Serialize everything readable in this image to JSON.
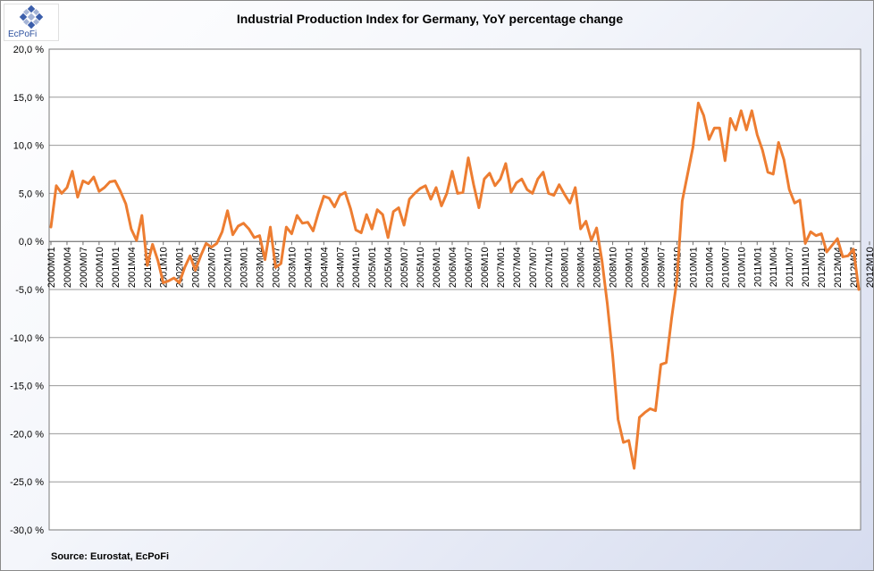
{
  "logo": {
    "text": "EcPoFi",
    "mark": "diamond-logo-icon"
  },
  "source_note": "Source: Eurostat,  EcPoFi",
  "colors": {
    "line": "#ED7D31",
    "grid": "#9a9a9a",
    "plot_bg": "#ffffff",
    "axis_text": "#000000"
  },
  "chart_data": {
    "type": "line",
    "title": "Industrial Production Index for Germany, YoY percentage change",
    "xlabel": "",
    "ylabel": "",
    "ylim": [
      -30,
      20
    ],
    "grid": true,
    "legend": "none",
    "y_ticks": [
      20,
      15,
      10,
      5,
      0,
      -5,
      -10,
      -15,
      -20,
      -25,
      -30
    ],
    "y_tick_labels": [
      "20,0 %",
      "15,0 %",
      "10,0 %",
      "5,0 %",
      "0,0 %",
      "-5,0 %",
      "-10,0 %",
      "-15,0 %",
      "-20,0 %",
      "-25,0 %",
      "-30,0 %"
    ],
    "x_tick_labels": [
      "2000M01",
      "2000M04",
      "2000M07",
      "2000M10",
      "2001M01",
      "2001M04",
      "2001M07",
      "2001M10",
      "2002M01",
      "2002M04",
      "2002M07",
      "2002M10",
      "2003M01",
      "2003M04",
      "2003M07",
      "2003M10",
      "2004M01",
      "2004M04",
      "2004M07",
      "2004M10",
      "2005M01",
      "2005M04",
      "2005M07",
      "2005M10",
      "2006M01",
      "2006M04",
      "2006M07",
      "2006M10",
      "2007M01",
      "2007M04",
      "2007M07",
      "2007M10",
      "2008M01",
      "2008M04",
      "2008M07",
      "2008M10",
      "2009M01",
      "2009M04",
      "2009M07",
      "2009M10",
      "2010M01",
      "2010M04",
      "2010M07",
      "2010M10",
      "2011M01",
      "2011M04",
      "2011M07",
      "2011M10",
      "2012M01",
      "2012M04",
      "2012M07",
      "2012M10"
    ],
    "series": [
      {
        "name": "Industrial Production Index YoY",
        "start": "2000M01",
        "values": [
          1.5,
          5.8,
          5.0,
          5.6,
          7.3,
          4.6,
          6.3,
          6.0,
          6.7,
          5.2,
          5.6,
          6.2,
          6.3,
          5.2,
          3.9,
          1.3,
          0.1,
          2.7,
          -2.5,
          -0.3,
          -2.0,
          -4.3,
          -4.1,
          -3.8,
          -4.3,
          -2.7,
          -1.5,
          -3.0,
          -1.5,
          -0.2,
          -0.6,
          -0.2,
          1.0,
          3.2,
          0.7,
          1.6,
          1.9,
          1.3,
          0.4,
          0.6,
          -1.9,
          1.5,
          -2.7,
          -2.3,
          1.5,
          0.8,
          2.7,
          1.9,
          2.0,
          1.1,
          3.0,
          4.7,
          4.5,
          3.6,
          4.8,
          5.1,
          3.4,
          1.2,
          0.9,
          2.8,
          1.3,
          3.3,
          2.8,
          0.4,
          3.1,
          3.5,
          1.7,
          4.4,
          5.0,
          5.5,
          5.8,
          4.4,
          5.6,
          3.7,
          5.0,
          7.3,
          5.0,
          5.1,
          8.7,
          5.9,
          3.5,
          6.5,
          7.1,
          5.8,
          6.5,
          8.1,
          5.1,
          6.1,
          6.5,
          5.4,
          5.0,
          6.5,
          7.2,
          5.0,
          4.8,
          5.9,
          4.9,
          4.0,
          5.6,
          1.3,
          2.1,
          0.1,
          1.4,
          -2.0,
          -6.5,
          -11.9,
          -18.5,
          -20.9,
          -20.7,
          -23.6,
          -18.3,
          -17.8,
          -17.4,
          -17.6,
          -12.8,
          -12.6,
          -8.0,
          -4.0,
          4.2,
          7.0,
          9.8,
          14.4,
          13.1,
          10.6,
          11.8,
          11.8,
          8.4,
          12.8,
          11.6,
          13.6,
          11.6,
          13.6,
          11.1,
          9.5,
          7.2,
          7.0,
          10.3,
          8.5,
          5.4,
          4.0,
          4.3,
          -0.2,
          1.0,
          0.6,
          0.8,
          -1.1,
          -0.4,
          0.3,
          -1.6,
          -1.5,
          -0.8,
          -5.0
        ]
      }
    ]
  }
}
